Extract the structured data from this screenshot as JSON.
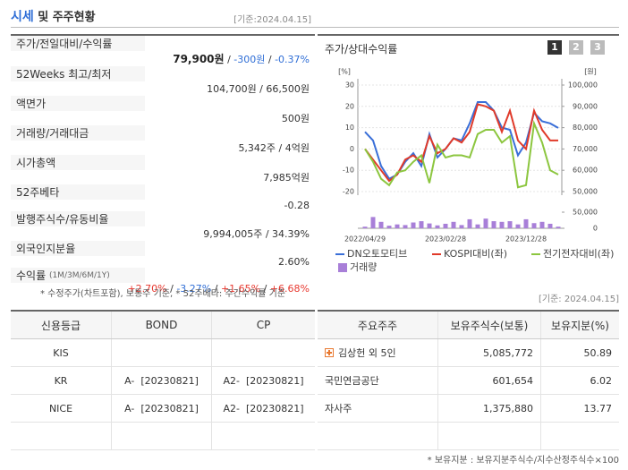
{
  "header": {
    "title_highlight": "시세",
    "title_rest": "및 주주현황",
    "date": "[기준:2024.04.15]"
  },
  "price_table": {
    "rows": [
      {
        "label": "주가/전일대비/수익률",
        "value_parts": [
          {
            "text": "79,900원",
            "bold": true
          },
          {
            "text": " / "
          },
          {
            "text": "-300원",
            "color": "#2f6ed6"
          },
          {
            "text": " / "
          },
          {
            "text": "-0.37%",
            "color": "#2f6ed6"
          }
        ]
      },
      {
        "label": "52Weeks 최고/최저",
        "value": "104,700원 / 66,500원"
      },
      {
        "label": "액면가",
        "value": "500원"
      },
      {
        "label": "거래량/거래대금",
        "value": "5,342주 / 4억원"
      },
      {
        "label": "시가총액",
        "value": "7,985억원"
      },
      {
        "label": "52주베타",
        "value": "-0.28"
      },
      {
        "label": "발행주식수/유동비율",
        "value": "9,994,005주 / 34.39%"
      },
      {
        "label": "외국인지분율",
        "value": "2.60%"
      },
      {
        "label_parts": [
          {
            "text": "수익률 "
          },
          {
            "text": "(1M/3M/6M/1Y)",
            "small": true
          }
        ],
        "value_parts": [
          {
            "text": "+2.70%",
            "color": "#e8382f"
          },
          {
            "text": " / "
          },
          {
            "text": "-3.27%",
            "color": "#2f6ed6"
          },
          {
            "text": " / "
          },
          {
            "text": "+1.65%",
            "color": "#e8382f"
          },
          {
            "text": " / "
          },
          {
            "text": "+6.68%",
            "color": "#e8382f"
          }
        ]
      }
    ]
  },
  "price_note": "* 수정주가(차트포함), 보통주 기준, * 52주베타: 주간수익률 기준",
  "chart_title": "주가/상대수익률",
  "chart_tabs": [
    "1",
    "2",
    "3"
  ],
  "chart_data": {
    "type": "line",
    "ylabel": "[%]",
    "y2label": "[원]",
    "categories": [
      "2022/04/29",
      null,
      null,
      null,
      null,
      null,
      null,
      null,
      null,
      null,
      "2023/02/28",
      null,
      null,
      null,
      null,
      null,
      null,
      null,
      null,
      null,
      "2023/12/28",
      null,
      null,
      null,
      null
    ],
    "ylim": [
      -20,
      30
    ],
    "yticks": [
      -20,
      -10,
      0,
      10,
      20,
      30
    ],
    "y2lim": [
      50000,
      100000
    ],
    "y2ticks": [
      {
        "value": 50000,
        "label": "50,000"
      },
      {
        "value": 60000,
        "label": "60,000"
      },
      {
        "value": 70000,
        "label": "70,000"
      },
      {
        "value": 80000,
        "label": "80,000"
      },
      {
        "value": 90000,
        "label": "90,000"
      },
      {
        "value": 100000,
        "label": "100,000"
      }
    ],
    "y3lim": [
      0,
      50000
    ],
    "y3ticks": [
      0,
      {
        "value": 50000,
        "label": "50,000"
      }
    ],
    "grid": true,
    "series": [
      {
        "name": "DN오토모티브",
        "color": "#3a6fd8",
        "axis": "y2",
        "values": [
          78000,
          74000,
          62000,
          56000,
          58000,
          64000,
          68000,
          62000,
          77000,
          66000,
          70000,
          75000,
          74000,
          82000,
          92000,
          92000,
          88000,
          80000,
          79000,
          67000,
          73000,
          87000,
          83000,
          82000,
          79900
        ]
      },
      {
        "name": "KOSPI대비(좌)",
        "color": "#e03a2a",
        "values": [
          0,
          -5,
          -10,
          -15,
          -12,
          -5,
          -3,
          -6,
          6,
          -2,
          0,
          5,
          3,
          8,
          21,
          20,
          18,
          8,
          18,
          4,
          0,
          18,
          9,
          4,
          4
        ]
      },
      {
        "name": "전기전자대비(좌)",
        "color": "#8cc63f",
        "values": [
          0,
          -6,
          -14,
          -17,
          -11,
          -10,
          -6,
          -3,
          -16,
          2,
          -4,
          -3,
          -3,
          -4,
          7,
          9,
          9,
          3,
          6,
          -18,
          -17,
          12,
          3,
          -10,
          -12
        ]
      },
      {
        "name": "거래량",
        "color": "#a87fd8",
        "type": "bar",
        "axis": "y3",
        "values": [
          5000,
          35000,
          20000,
          8000,
          12000,
          10000,
          18000,
          22000,
          15000,
          9000,
          14000,
          20000,
          10000,
          28000,
          12000,
          30000,
          22000,
          20000,
          22000,
          12000,
          28000,
          16000,
          20000,
          14000,
          5000
        ]
      }
    ]
  },
  "holders_date": "[기준: 2024.04.15]",
  "rating_table": {
    "headers": [
      "신용등급",
      "BOND",
      "CP"
    ],
    "rows": [
      [
        "KIS",
        null,
        null
      ],
      [
        "KR",
        "A-  [20230821]",
        "A2-  [20230821]"
      ],
      [
        "NICE",
        "A-  [20230821]",
        "A2-  [20230821]"
      ],
      [
        null,
        null,
        null
      ]
    ]
  },
  "holders_table": {
    "headers": [
      "주요주주",
      "보유주식수(보통)",
      "보유지분(%)"
    ],
    "rows": [
      [
        "김상헌 외 5인",
        "5,085,772",
        "50.89"
      ],
      [
        "국민연금공단",
        "601,654",
        "6.02"
      ],
      [
        "자사주",
        "1,375,880",
        "13.77"
      ],
      [
        null,
        null,
        null
      ]
    ]
  },
  "holders_note": "* 보유지분 : 보유지분주식수/지수산정주식수×100"
}
